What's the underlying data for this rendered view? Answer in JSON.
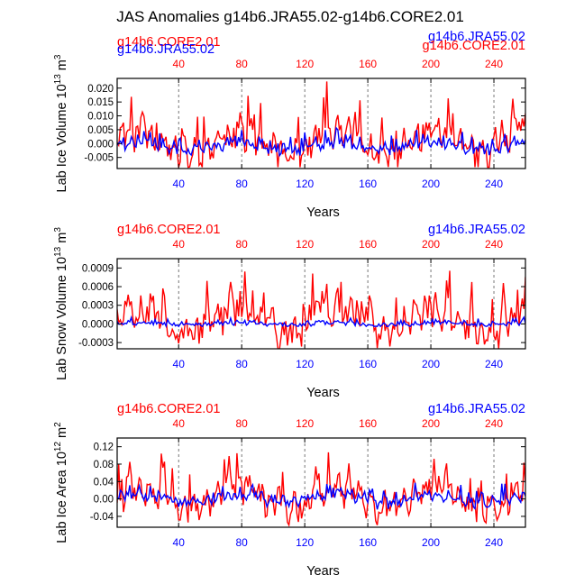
{
  "figure": {
    "title": "JAS Anomalies g14b6.JRA55.02-g14b6.CORE2.01"
  },
  "colors": {
    "core": "#ff0000",
    "jra": "#0000ff",
    "axis": "#000000",
    "grid": "#555555"
  },
  "chart_data": [
    {
      "type": "line",
      "ylabel": "Lab Ice Volume 10",
      "ylabel_sup": "13",
      "ylabel_unit": "m",
      "ylabel_unit_sup": "3",
      "xlabel": "Years",
      "ylim": [
        -0.009,
        0.0235
      ],
      "xlim": [
        1,
        260
      ],
      "yticks": [
        0.02,
        0.015,
        0.01,
        0.005,
        0.0,
        -0.005
      ],
      "ytick_labels": [
        "0.020",
        "0.015",
        "0.010",
        "0.005",
        "0.000",
        "-0.005"
      ],
      "xticks": [
        40,
        80,
        120,
        160,
        200,
        240
      ],
      "xtick_labels": [
        "40",
        "80",
        "120",
        "160",
        "200",
        "240"
      ],
      "series": [
        {
          "name": "g14b6.CORE2.01",
          "color": "#ff0000",
          "legend": "top-left",
          "amp": 0.0068,
          "base": 0.0,
          "noise": 0.006,
          "seed": 11,
          "min": -0.0085,
          "max": 0.0235
        },
        {
          "name": "g14b6.JRA55.02",
          "color": "#0000ff",
          "legend": "top-right",
          "amp": 0.0022,
          "base": -0.001,
          "noise": 0.0022,
          "seed": 23,
          "min": -0.007,
          "max": 0.01
        }
      ],
      "legend_overlap": true
    },
    {
      "type": "line",
      "ylabel": "Lab Snow Volume 10",
      "ylabel_sup": "13",
      "ylabel_unit": "m",
      "ylabel_unit_sup": "3",
      "xlabel": "Years",
      "ylim": [
        -0.0004,
        0.00105
      ],
      "xlim": [
        1,
        260
      ],
      "yticks": [
        0.0009,
        0.0006,
        0.0003,
        0.0,
        -0.0003
      ],
      "ytick_labels": [
        "0.0009",
        "0.0006",
        "0.0003",
        "0.0000",
        "-0.0003"
      ],
      "xticks": [
        40,
        80,
        120,
        160,
        200,
        240
      ],
      "xtick_labels": [
        "40",
        "80",
        "120",
        "160",
        "200",
        "240"
      ],
      "series": [
        {
          "name": "g14b6.CORE2.01",
          "color": "#ff0000",
          "legend": "top-left",
          "amp": 0.00032,
          "base": 5e-05,
          "noise": 0.0003,
          "seed": 37,
          "min": -0.0004,
          "max": 0.00098
        },
        {
          "name": "g14b6.JRA55.02",
          "color": "#0000ff",
          "legend": "top-right",
          "amp": 3e-05,
          "base": 0.0,
          "noise": 4e-05,
          "seed": 41,
          "min": -4e-05,
          "max": 0.00011
        }
      ],
      "legend_overlap": false
    },
    {
      "type": "line",
      "ylabel": "Lab Ice Area 10",
      "ylabel_sup": "12",
      "ylabel_unit": "m",
      "ylabel_unit_sup": "2",
      "xlabel": "Years",
      "ylim": [
        -0.065,
        0.14
      ],
      "xlim": [
        1,
        260
      ],
      "yticks": [
        0.12,
        0.08,
        0.04,
        0.0,
        -0.04
      ],
      "ytick_labels": [
        "0.12",
        "0.08",
        "0.04",
        "0.00",
        "-0.04"
      ],
      "xticks": [
        40,
        80,
        120,
        160,
        200,
        240
      ],
      "xtick_labels": [
        "40",
        "80",
        "120",
        "160",
        "200",
        "240"
      ],
      "series": [
        {
          "name": "g14b6.CORE2.01",
          "color": "#ff0000",
          "legend": "top-left",
          "amp": 0.038,
          "base": 0.0,
          "noise": 0.035,
          "seed": 53,
          "min": -0.06,
          "max": 0.14
        },
        {
          "name": "g14b6.JRA55.02",
          "color": "#0000ff",
          "legend": "top-right",
          "amp": 0.015,
          "base": 0.0,
          "noise": 0.013,
          "seed": 67,
          "min": -0.035,
          "max": 0.045
        }
      ],
      "legend_overlap": false
    }
  ]
}
